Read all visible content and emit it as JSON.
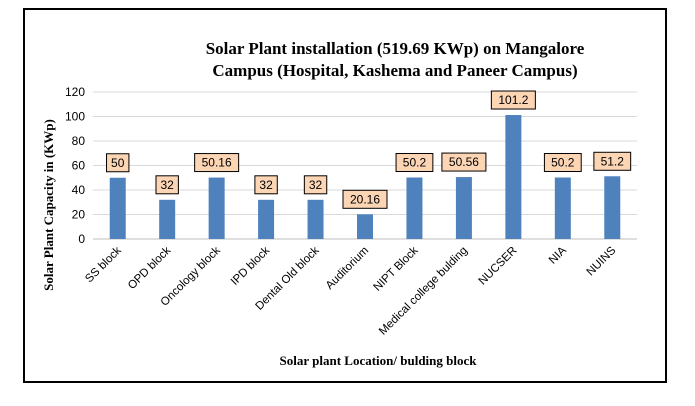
{
  "chart_data": {
    "type": "bar",
    "title_lines": [
      "Solar Plant installation (519.69 KWp)  on Mangalore",
      "Campus  (Hospital, Kashema and Paneer Campus)"
    ],
    "xlabel": "Solar plant Location/ bulding block",
    "ylabel": "Solar Plant Capacity in (KWp)",
    "ylim": [
      0,
      120
    ],
    "yticks": [
      0,
      20,
      40,
      60,
      80,
      100,
      120
    ],
    "categories": [
      "SS block",
      "OPD block",
      "Oncology block",
      "IPD block",
      "Dental Old block",
      "Auditorium",
      "NIPT Block",
      "Medical college bulding",
      "NUCSER",
      "NIA",
      "NUINS"
    ],
    "values": [
      50,
      32,
      50.16,
      32,
      32,
      20.16,
      50.2,
      50.56,
      101.2,
      50.2,
      51.2
    ],
    "data_labels": [
      "50",
      "32",
      "50.16",
      "32",
      "32",
      "20.16",
      "50.2",
      "50.56",
      "101.2",
      "50.2",
      "51.2"
    ],
    "grid": true,
    "bar_color": "#4F81BD",
    "label_fill": "#FCD5B5"
  }
}
